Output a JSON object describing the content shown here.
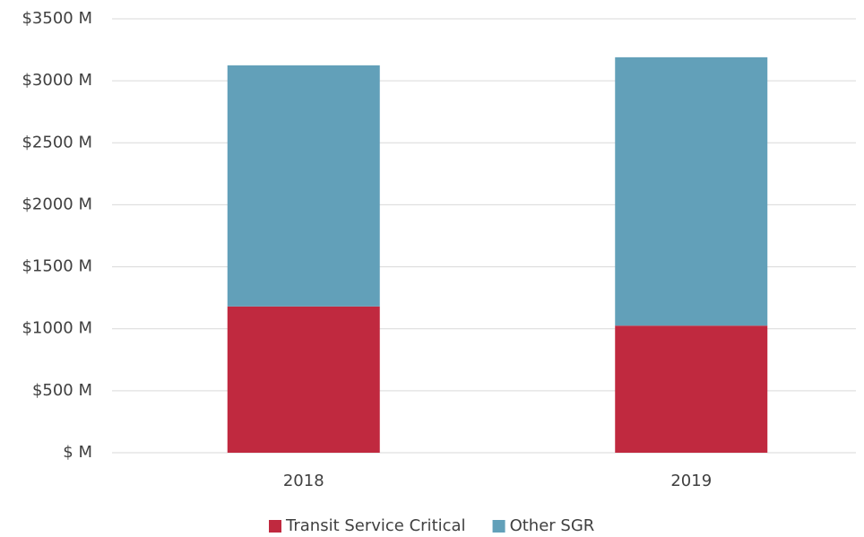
{
  "chart_data": {
    "type": "stacked_bar",
    "categories": [
      "2018",
      "2019"
    ],
    "series": [
      {
        "name": "Transit Service Critical",
        "color": "#c0293f",
        "values": [
          1180,
          1025
        ]
      },
      {
        "name": "Other SGR",
        "color": "#62a0b9",
        "values": [
          1945,
          2165
        ]
      }
    ],
    "ylim": [
      0,
      3500
    ],
    "yticks": [
      {
        "value": 0,
        "label": "$ M"
      },
      {
        "value": 500,
        "label": "$500 M"
      },
      {
        "value": 1000,
        "label": "$1000 M"
      },
      {
        "value": 1500,
        "label": "$1500 M"
      },
      {
        "value": 2000,
        "label": "$2000 M"
      },
      {
        "value": 2500,
        "label": "$2500 M"
      },
      {
        "value": 3000,
        "label": "$3000 M"
      },
      {
        "value": 3500,
        "label": "$3500 M"
      }
    ],
    "grid": true,
    "legend": "bottom"
  }
}
